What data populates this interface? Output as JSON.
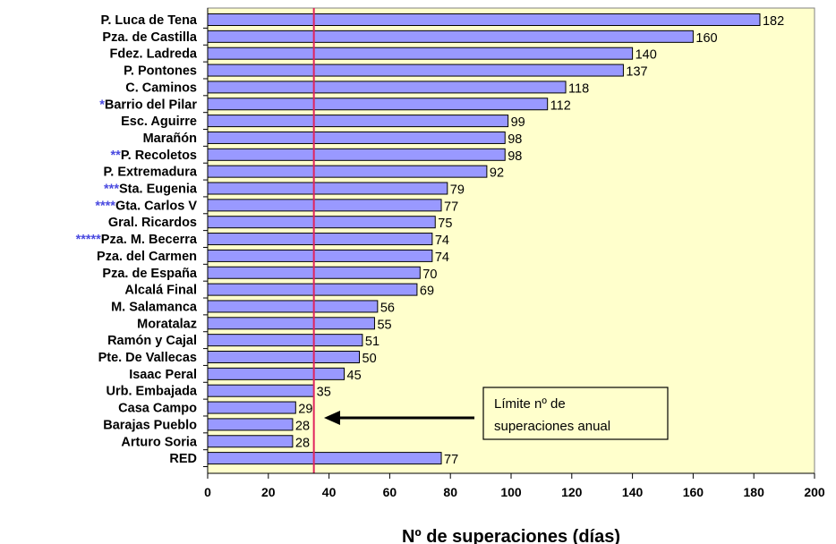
{
  "chart_data": {
    "type": "bar",
    "orientation": "horizontal",
    "categories": [
      {
        "stars": "",
        "label": "P. Luca de Tena"
      },
      {
        "stars": "",
        "label": "Pza. de Castilla"
      },
      {
        "stars": "",
        "label": "Fdez. Ladreda"
      },
      {
        "stars": "",
        "label": "P. Pontones"
      },
      {
        "stars": "",
        "label": "C. Caminos"
      },
      {
        "stars": "*",
        "label": "Barrio del Pilar"
      },
      {
        "stars": "",
        "label": "Esc. Aguirre"
      },
      {
        "stars": "",
        "label": "Marañón"
      },
      {
        "stars": "**",
        "label": "P. Recoletos"
      },
      {
        "stars": "",
        "label": "P. Extremadura"
      },
      {
        "stars": "***",
        "label": "Sta. Eugenia"
      },
      {
        "stars": "****",
        "label": "Gta. Carlos V"
      },
      {
        "stars": "",
        "label": "Gral. Ricardos"
      },
      {
        "stars": "*****",
        "label": "Pza. M. Becerra"
      },
      {
        "stars": "",
        "label": "Pza. del Carmen"
      },
      {
        "stars": "",
        "label": "Pza. de España"
      },
      {
        "stars": "",
        "label": "Alcalá Final"
      },
      {
        "stars": "",
        "label": "M. Salamanca"
      },
      {
        "stars": "",
        "label": "Moratalaz"
      },
      {
        "stars": "",
        "label": "Ramón y Cajal"
      },
      {
        "stars": "",
        "label": "Pte. De Vallecas"
      },
      {
        "stars": "",
        "label": "Isaac Peral"
      },
      {
        "stars": "",
        "label": "Urb. Embajada"
      },
      {
        "stars": "",
        "label": "Casa Campo"
      },
      {
        "stars": "",
        "label": "Barajas Pueblo"
      },
      {
        "stars": "",
        "label": "Arturo Soria"
      },
      {
        "stars": "",
        "label": "RED"
      }
    ],
    "values": [
      182,
      160,
      140,
      137,
      118,
      112,
      99,
      98,
      98,
      92,
      79,
      77,
      75,
      74,
      74,
      70,
      69,
      56,
      55,
      51,
      50,
      45,
      35,
      29,
      28,
      28,
      77
    ],
    "xlim": [
      0,
      200
    ],
    "xticks": [
      0,
      20,
      40,
      60,
      80,
      100,
      120,
      140,
      160,
      180,
      200
    ],
    "xlabel": "Nº de superaciones (días)",
    "reference_line": {
      "value": 35,
      "color": "#e0245e"
    },
    "annotation": {
      "lines": [
        "Límite nº de",
        "superaciones anual"
      ],
      "points_to": "reference_line"
    },
    "colors": {
      "bar_fill": "#9999ff",
      "plot_background": "#ffffcc",
      "star_color": "#4a4ae0",
      "annotation_box": "#ffffcc"
    },
    "grid": false,
    "legend": "none"
  }
}
